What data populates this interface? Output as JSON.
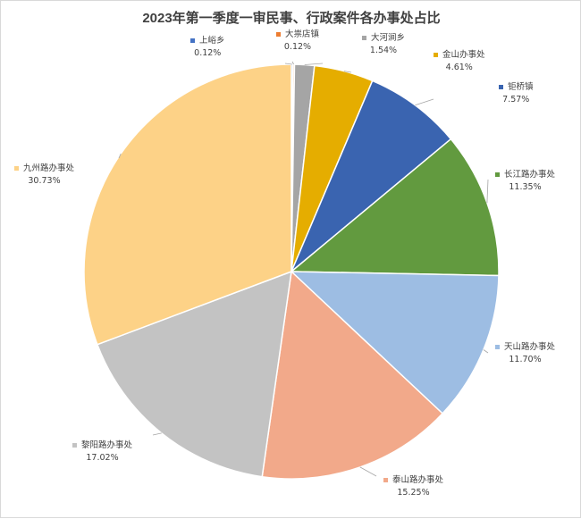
{
  "chart_data": {
    "type": "pie",
    "title": "2023年第一季度一审民事、行政案件各办事处占比",
    "start_angle_deg": 0,
    "direction": "clockwise",
    "legend": "none",
    "slices": [
      {
        "name": "上峪乡",
        "value": 0.12,
        "label": "0.12%",
        "color": "#4472C4"
      },
      {
        "name": "大祟店镇",
        "value": 0.12,
        "label": "0.12%",
        "color": "#ED7D31"
      },
      {
        "name": "大河涧乡",
        "value": 1.54,
        "label": "1.54%",
        "color": "#A5A5A5"
      },
      {
        "name": "金山办事处",
        "value": 4.61,
        "label": "4.61%",
        "color": "#E5AD00"
      },
      {
        "name": "钜桥镇",
        "value": 7.57,
        "label": "7.57%",
        "color": "#3A64B0"
      },
      {
        "name": "长江路办事处",
        "value": 11.35,
        "label": "11.35%",
        "color": "#629A3F"
      },
      {
        "name": "天山路办事处",
        "value": 11.7,
        "label": "11.70%",
        "color": "#9DBDE3"
      },
      {
        "name": "泰山路办事处",
        "value": 15.25,
        "label": "15.25%",
        "color": "#F2A98A"
      },
      {
        "name": "黎阳路办事处",
        "value": 17.02,
        "label": "17.02%",
        "color": "#C3C3C3"
      },
      {
        "name": "九州路办事处",
        "value": 30.73,
        "label": "30.73%",
        "color": "#FDD287"
      }
    ]
  }
}
